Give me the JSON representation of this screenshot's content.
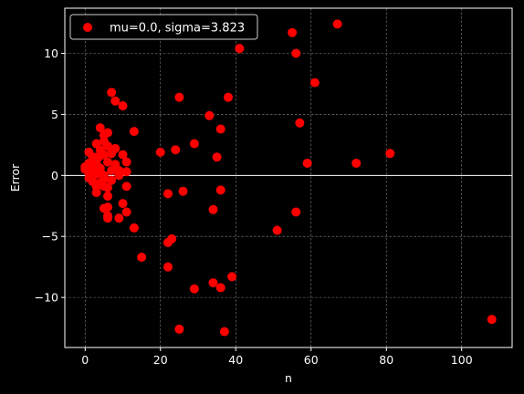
{
  "chart_data": {
    "type": "scatter",
    "title": "",
    "xlabel": "n",
    "ylabel": "Error",
    "xlim": [
      -5.4,
      113.4
    ],
    "ylim": [
      -14.1,
      13.7
    ],
    "xticks": [
      0,
      20,
      40,
      60,
      80,
      100
    ],
    "yticks": [
      -10,
      -5,
      0,
      5,
      10
    ],
    "x_tick_labels": [
      "0",
      "20",
      "40",
      "60",
      "80",
      "100"
    ],
    "y_tick_labels": [
      "−10",
      "−5",
      "0",
      "5",
      "10"
    ],
    "grid": true,
    "zero_line": true,
    "legend_position": "upper-left",
    "colors": {
      "background": "#000000",
      "marker": "#ff0000",
      "axis": "#ffffff",
      "grid": "#888888"
    },
    "series": [
      {
        "name": "mu=0.0, sigma=3.823",
        "points": [
          [
            0,
            0.7
          ],
          [
            0,
            0.5
          ],
          [
            1,
            1.0
          ],
          [
            1,
            0.2
          ],
          [
            1,
            -0.2
          ],
          [
            1,
            1.9
          ],
          [
            2,
            0.4
          ],
          [
            2,
            0.0
          ],
          [
            2,
            -0.5
          ],
          [
            2,
            1.5
          ],
          [
            2,
            0.9
          ],
          [
            3,
            1.5
          ],
          [
            3,
            0.8
          ],
          [
            3,
            -0.9
          ],
          [
            3,
            -1.4
          ],
          [
            3,
            0.1
          ],
          [
            3,
            2.6
          ],
          [
            3,
            1.2
          ],
          [
            4,
            2.1
          ],
          [
            4,
            0.3
          ],
          [
            4,
            -0.6
          ],
          [
            4,
            1.6
          ],
          [
            4,
            3.9
          ],
          [
            4,
            0.6
          ],
          [
            5,
            2.8
          ],
          [
            5,
            -0.3
          ],
          [
            5,
            -0.9
          ],
          [
            5,
            -2.7
          ],
          [
            5,
            1.7
          ],
          [
            5,
            0.0
          ],
          [
            5,
            3.3
          ],
          [
            6,
            -1.7
          ],
          [
            6,
            -2.6
          ],
          [
            6,
            -3.3
          ],
          [
            6,
            -3.5
          ],
          [
            6,
            2.4
          ],
          [
            6,
            1.1
          ],
          [
            6,
            3.5
          ],
          [
            6,
            -1.0
          ],
          [
            7,
            6.8
          ],
          [
            7,
            1.8
          ],
          [
            7,
            0.4
          ],
          [
            7,
            -0.4
          ],
          [
            8,
            6.1
          ],
          [
            8,
            0.9
          ],
          [
            8,
            2.2
          ],
          [
            9,
            -3.5
          ],
          [
            9,
            0.4
          ],
          [
            9,
            0.0
          ],
          [
            10,
            5.7
          ],
          [
            10,
            -2.3
          ],
          [
            10,
            1.7
          ],
          [
            11,
            1.1
          ],
          [
            11,
            -0.9
          ],
          [
            11,
            -3.0
          ],
          [
            11,
            0.3
          ],
          [
            13,
            3.6
          ],
          [
            13,
            -4.3
          ],
          [
            15,
            -6.7
          ],
          [
            20,
            1.9
          ],
          [
            22,
            -1.5
          ],
          [
            22,
            -5.5
          ],
          [
            22,
            -7.5
          ],
          [
            23,
            -5.2
          ],
          [
            24,
            2.1
          ],
          [
            25,
            6.4
          ],
          [
            25,
            -12.6
          ],
          [
            26,
            -1.3
          ],
          [
            29,
            2.6
          ],
          [
            29,
            -9.3
          ],
          [
            33,
            4.9
          ],
          [
            34,
            -2.8
          ],
          [
            34,
            -8.8
          ],
          [
            35,
            1.5
          ],
          [
            36,
            3.8
          ],
          [
            36,
            -1.2
          ],
          [
            36,
            -9.2
          ],
          [
            37,
            -12.8
          ],
          [
            38,
            6.4
          ],
          [
            39,
            -8.3
          ],
          [
            41,
            10.4
          ],
          [
            51,
            -4.5
          ],
          [
            55,
            11.7
          ],
          [
            56,
            10.0
          ],
          [
            56,
            -3.0
          ],
          [
            57,
            4.3
          ],
          [
            59,
            1.0
          ],
          [
            61,
            7.6
          ],
          [
            67,
            12.4
          ],
          [
            72,
            1.0
          ],
          [
            81,
            1.8
          ],
          [
            108,
            -11.8
          ]
        ]
      }
    ]
  }
}
